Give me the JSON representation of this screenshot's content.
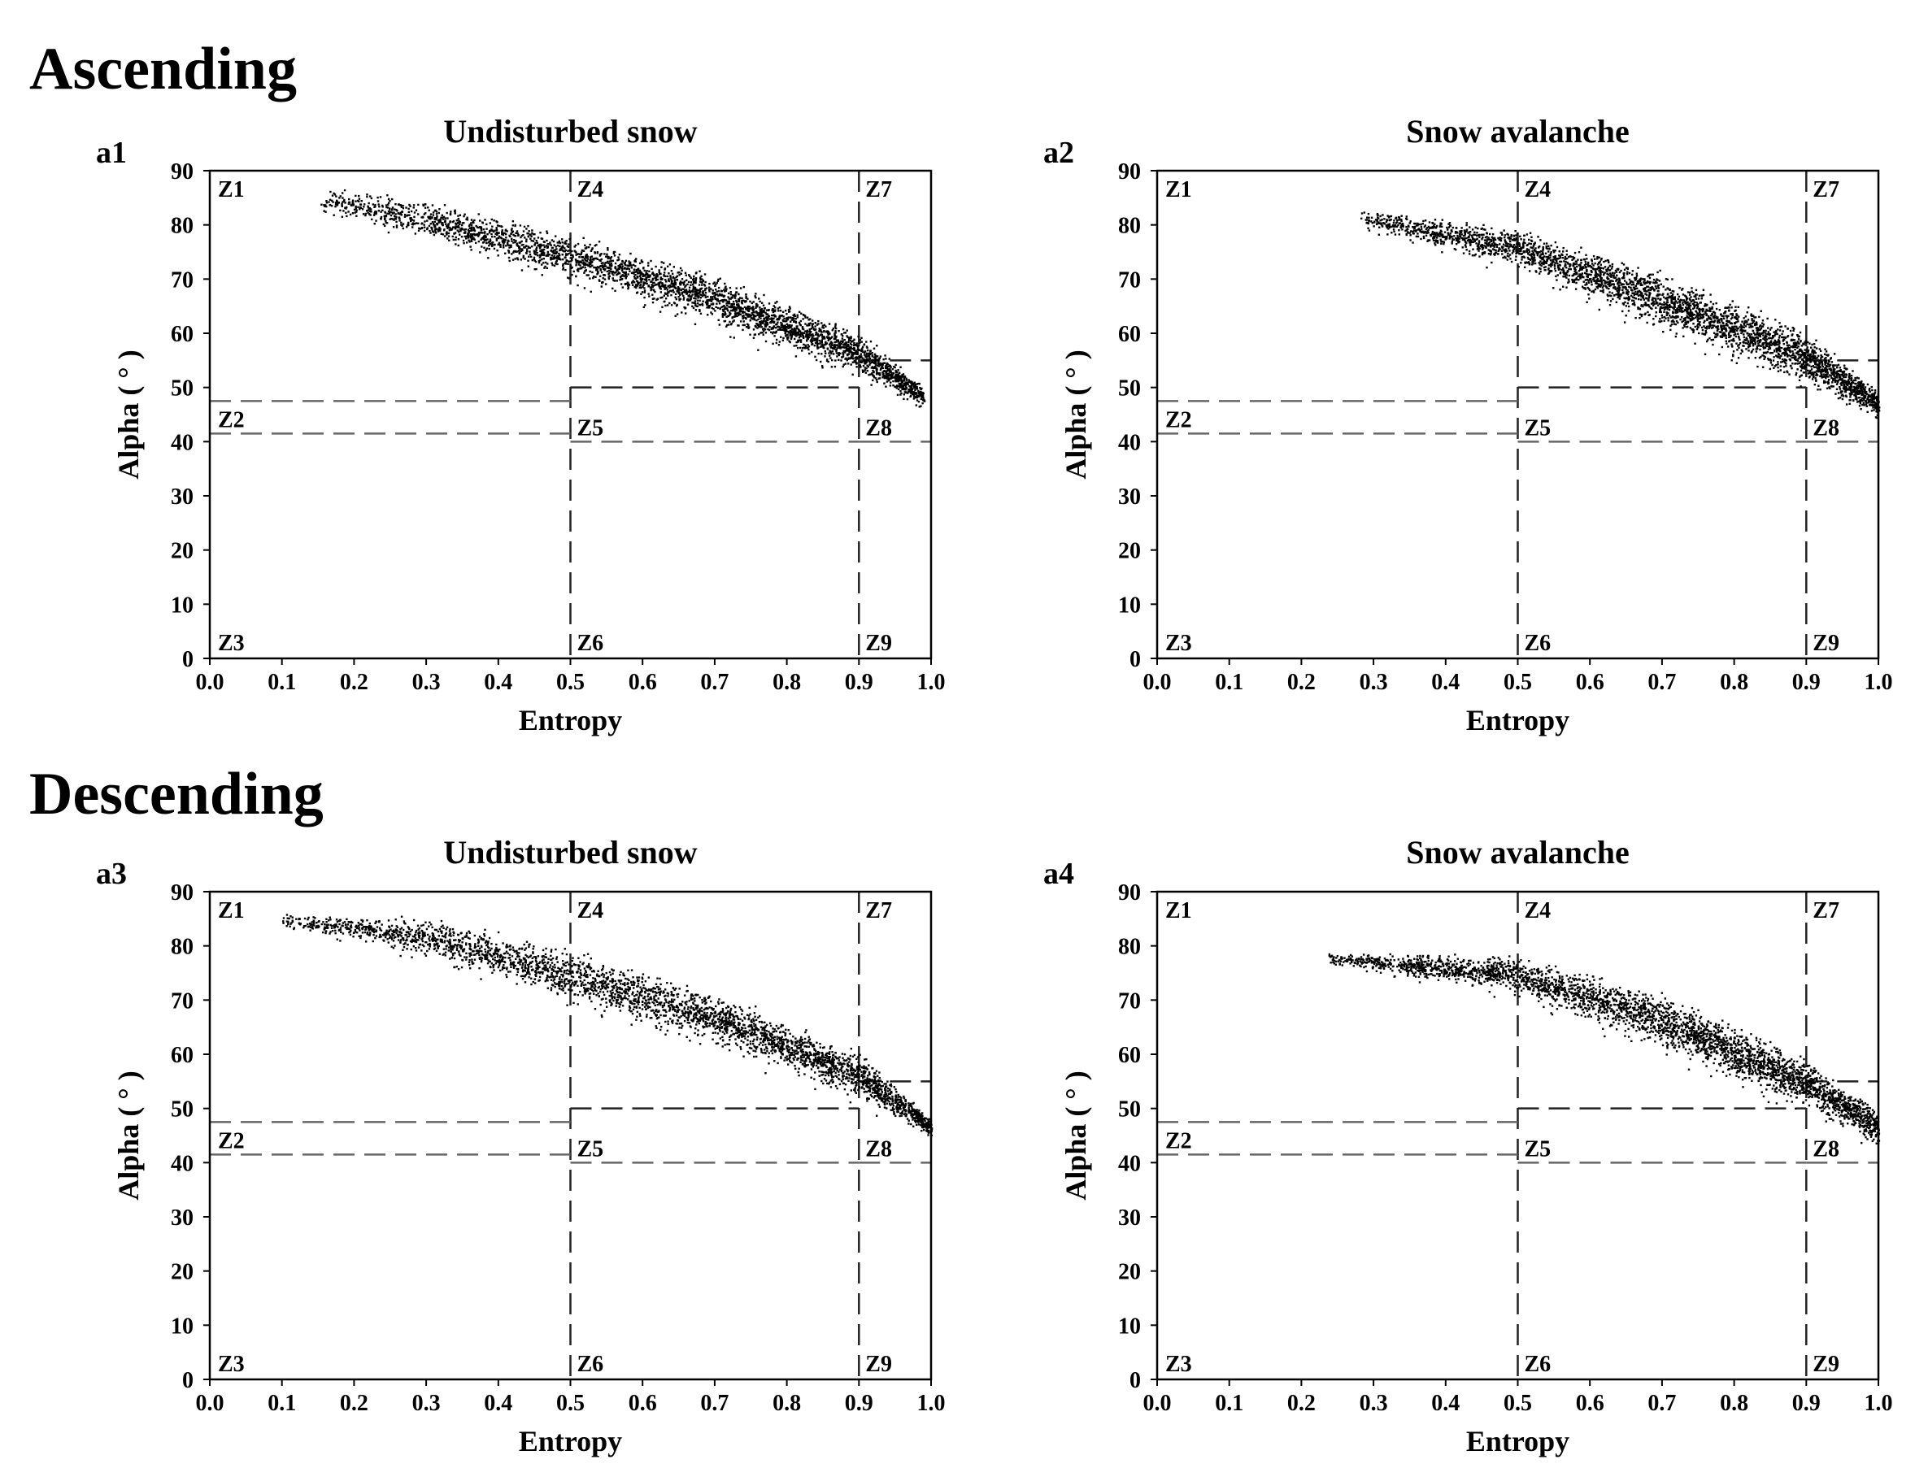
{
  "sections": [
    {
      "name": "Ascending",
      "panels": [
        0,
        1
      ]
    },
    {
      "name": "Descending",
      "panels": [
        2,
        3
      ]
    }
  ],
  "chart_data": [
    {
      "type": "scatter",
      "panel_label": "a1",
      "orbit": "Ascending",
      "title": "Undisturbed snow",
      "xlabel": "Entropy",
      "ylabel": "Alpha ( ° )",
      "xlim": [
        0.0,
        1.0
      ],
      "ylim": [
        0,
        90
      ],
      "xticks": [
        "0.0",
        "0.1",
        "0.2",
        "0.3",
        "0.4",
        "0.5",
        "0.6",
        "0.7",
        "0.8",
        "0.9",
        "1.0"
      ],
      "yticks": [
        "0",
        "10",
        "20",
        "30",
        "40",
        "50",
        "60",
        "70",
        "80",
        "90"
      ],
      "zones": [
        "Z1",
        "Z2",
        "Z3",
        "Z4",
        "Z5",
        "Z6",
        "Z7",
        "Z8",
        "Z9"
      ],
      "zone_boundaries": {
        "entropy": [
          0.5,
          0.9
        ],
        "alpha_low_entropy": [
          47.5,
          41.5
        ],
        "alpha_mid_entropy": [
          50,
          40
        ],
        "alpha_high_entropy": [
          55,
          40
        ]
      },
      "cloud": {
        "entropy_start": 0.15,
        "entropy_end": 0.99,
        "alpha_upper": [
          [
            0.15,
            87
          ],
          [
            0.3,
            84.5
          ],
          [
            0.5,
            78
          ],
          [
            0.7,
            70.5
          ],
          [
            0.9,
            60
          ],
          [
            0.99,
            50
          ]
        ],
        "alpha_lower": [
          [
            0.15,
            83
          ],
          [
            0.3,
            78
          ],
          [
            0.5,
            71
          ],
          [
            0.7,
            63
          ],
          [
            0.9,
            53
          ],
          [
            0.99,
            47
          ]
        ]
      }
    },
    {
      "type": "scatter",
      "panel_label": "a2",
      "orbit": "Ascending",
      "title": "Snow avalanche",
      "xlabel": "Entropy",
      "ylabel": "Alpha ( ° )",
      "xlim": [
        0.0,
        1.0
      ],
      "ylim": [
        0,
        90
      ],
      "xticks": [
        "0.0",
        "0.1",
        "0.2",
        "0.3",
        "0.4",
        "0.5",
        "0.6",
        "0.7",
        "0.8",
        "0.9",
        "1.0"
      ],
      "yticks": [
        "0",
        "10",
        "20",
        "30",
        "40",
        "50",
        "60",
        "70",
        "80",
        "90"
      ],
      "zones": [
        "Z1",
        "Z2",
        "Z3",
        "Z4",
        "Z5",
        "Z6",
        "Z7",
        "Z8",
        "Z9"
      ],
      "zone_boundaries": {
        "entropy": [
          0.5,
          0.9
        ],
        "alpha_low_entropy": [
          47.5,
          41.5
        ],
        "alpha_mid_entropy": [
          50,
          40
        ],
        "alpha_high_entropy": [
          55,
          40
        ]
      },
      "cloud": {
        "entropy_start": 0.28,
        "entropy_end": 1.0,
        "alpha_upper": [
          [
            0.28,
            83
          ],
          [
            0.5,
            79
          ],
          [
            0.7,
            71
          ],
          [
            0.9,
            60
          ],
          [
            1.0,
            49
          ]
        ],
        "alpha_lower": [
          [
            0.28,
            80
          ],
          [
            0.5,
            73
          ],
          [
            0.7,
            62
          ],
          [
            0.9,
            52
          ],
          [
            1.0,
            45
          ]
        ]
      }
    },
    {
      "type": "scatter",
      "panel_label": "a3",
      "orbit": "Descending",
      "title": "Undisturbed snow",
      "xlabel": "Entropy",
      "ylabel": "Alpha ( ° )",
      "xlim": [
        0.0,
        1.0
      ],
      "ylim": [
        0,
        90
      ],
      "xticks": [
        "0.0",
        "0.1",
        "0.2",
        "0.3",
        "0.4",
        "0.5",
        "0.6",
        "0.7",
        "0.8",
        "0.9",
        "1.0"
      ],
      "yticks": [
        "0",
        "10",
        "20",
        "30",
        "40",
        "50",
        "60",
        "70",
        "80",
        "90"
      ],
      "zones": [
        "Z1",
        "Z2",
        "Z3",
        "Z4",
        "Z5",
        "Z6",
        "Z7",
        "Z8",
        "Z9"
      ],
      "zone_boundaries": {
        "entropy": [
          0.5,
          0.9
        ],
        "alpha_low_entropy": [
          47.5,
          41.5
        ],
        "alpha_mid_entropy": [
          50,
          40
        ],
        "alpha_high_entropy": [
          55,
          40
        ]
      },
      "cloud": {
        "entropy_start": 0.1,
        "entropy_end": 1.0,
        "alpha_upper": [
          [
            0.1,
            86
          ],
          [
            0.3,
            85
          ],
          [
            0.5,
            79
          ],
          [
            0.7,
            71
          ],
          [
            0.9,
            60
          ],
          [
            1.0,
            48
          ]
        ],
        "alpha_lower": [
          [
            0.1,
            84
          ],
          [
            0.3,
            79
          ],
          [
            0.5,
            71
          ],
          [
            0.7,
            63
          ],
          [
            0.9,
            53
          ],
          [
            1.0,
            45
          ]
        ]
      }
    },
    {
      "type": "scatter",
      "panel_label": "a4",
      "orbit": "Descending",
      "title": "Snow avalanche",
      "xlabel": "Entropy",
      "ylabel": "Alpha ( ° )",
      "xlim": [
        0.0,
        1.0
      ],
      "ylim": [
        0,
        90
      ],
      "xticks": [
        "0.0",
        "0.1",
        "0.2",
        "0.3",
        "0.4",
        "0.5",
        "0.6",
        "0.7",
        "0.8",
        "0.9",
        "1.0"
      ],
      "yticks": [
        "0",
        "10",
        "20",
        "30",
        "40",
        "50",
        "60",
        "70",
        "80",
        "90"
      ],
      "zones": [
        "Z1",
        "Z2",
        "Z3",
        "Z4",
        "Z5",
        "Z6",
        "Z7",
        "Z8",
        "Z9"
      ],
      "zone_boundaries": {
        "entropy": [
          0.5,
          0.9
        ],
        "alpha_low_entropy": [
          47.5,
          41.5
        ],
        "alpha_mid_entropy": [
          50,
          40
        ],
        "alpha_high_entropy": [
          55,
          40
        ]
      },
      "cloud": {
        "entropy_start": 0.23,
        "entropy_end": 1.0,
        "alpha_upper": [
          [
            0.23,
            79
          ],
          [
            0.5,
            78
          ],
          [
            0.7,
            71
          ],
          [
            0.9,
            59
          ],
          [
            1.0,
            49
          ]
        ],
        "alpha_lower": [
          [
            0.23,
            77
          ],
          [
            0.5,
            72
          ],
          [
            0.7,
            62
          ],
          [
            0.9,
            51
          ],
          [
            1.0,
            44
          ]
        ]
      }
    }
  ]
}
